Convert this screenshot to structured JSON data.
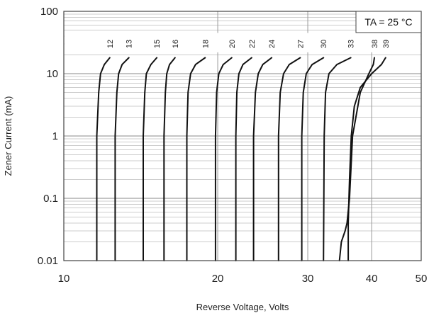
{
  "chart_data": {
    "type": "line",
    "title": "",
    "xlabel": "Reverse Voltage, Volts",
    "ylabel": "Zener Current (mA)",
    "x_scale": "log",
    "y_scale": "log",
    "xlim": [
      10,
      50
    ],
    "ylim": [
      0.01,
      100
    ],
    "x_ticks": [
      10,
      20,
      30,
      40,
      50
    ],
    "x_tick_labels": [
      "10",
      "20",
      "30",
      "40",
      "50"
    ],
    "y_ticks": [
      0.01,
      0.1,
      1,
      10,
      100
    ],
    "y_tick_labels": [
      "0.01",
      "0.1",
      "1",
      "10",
      "100"
    ],
    "grid": true,
    "annotation": "TA = 25 °C",
    "series": [
      {
        "name": "12",
        "x": [
          11.6,
          11.6,
          11.7,
          11.8,
          12.0,
          12.3
        ],
        "y": [
          0.01,
          1,
          5,
          10,
          14,
          18
        ]
      },
      {
        "name": "13",
        "x": [
          12.6,
          12.6,
          12.7,
          12.8,
          13.0,
          13.4
        ],
        "y": [
          0.01,
          1,
          5,
          10,
          14,
          18
        ]
      },
      {
        "name": "15",
        "x": [
          14.3,
          14.3,
          14.4,
          14.5,
          14.8,
          15.2
        ],
        "y": [
          0.01,
          1,
          5,
          10,
          14,
          18
        ]
      },
      {
        "name": "16",
        "x": [
          15.7,
          15.7,
          15.8,
          15.9,
          16.1,
          16.5
        ],
        "y": [
          0.01,
          1,
          5,
          10,
          14,
          18
        ]
      },
      {
        "name": "18",
        "x": [
          17.4,
          17.4,
          17.5,
          17.7,
          18.1,
          18.9
        ],
        "y": [
          0.01,
          1,
          5,
          10,
          14,
          18
        ]
      },
      {
        "name": "20",
        "x": [
          19.8,
          19.8,
          19.9,
          20.1,
          20.5,
          21.3
        ],
        "y": [
          0.01,
          1,
          5,
          10,
          14,
          18
        ]
      },
      {
        "name": "22",
        "x": [
          21.7,
          21.7,
          21.8,
          22.0,
          22.4,
          23.3
        ],
        "y": [
          0.01,
          1,
          5,
          10,
          14,
          18
        ]
      },
      {
        "name": "24",
        "x": [
          23.5,
          23.5,
          23.7,
          24.0,
          24.5,
          25.5
        ],
        "y": [
          0.01,
          1,
          5,
          10,
          14,
          18
        ]
      },
      {
        "name": "27",
        "x": [
          26.3,
          26.3,
          26.5,
          26.9,
          27.6,
          29.0
        ],
        "y": [
          0.01,
          1,
          5,
          10,
          14,
          18
        ]
      },
      {
        "name": "30",
        "x": [
          29.2,
          29.2,
          29.4,
          29.8,
          30.6,
          32.2
        ],
        "y": [
          0.01,
          1,
          5,
          10,
          14,
          18
        ]
      },
      {
        "name": "33",
        "x": [
          32.2,
          32.3,
          32.5,
          33.0,
          34.2,
          36.4
        ],
        "y": [
          0.01,
          1,
          5,
          10,
          14,
          18
        ]
      },
      {
        "name": "38",
        "x": [
          34.6,
          34.9,
          35.5,
          35.8,
          36.2,
          36.7,
          38.0,
          39.5,
          40.3,
          40.5
        ],
        "y": [
          0.01,
          0.02,
          0.03,
          0.04,
          0.1,
          1,
          5,
          10,
          14,
          18
        ]
      },
      {
        "name": "39",
        "x": [
          36.0,
          36.0,
          36.2,
          36.5,
          37.0,
          38.0,
          40.0,
          41.8,
          42.6
        ],
        "y": [
          0.01,
          0.04,
          0.2,
          1,
          3,
          6,
          10,
          14,
          18
        ]
      }
    ]
  }
}
